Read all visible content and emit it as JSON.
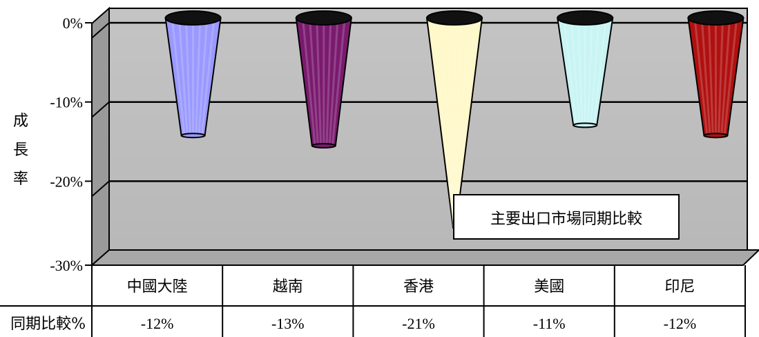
{
  "chart_data": {
    "type": "bar",
    "shape": "cone",
    "categories": [
      "中國大陸",
      "越南",
      "香港",
      "美國",
      "印尼"
    ],
    "series": [
      {
        "values": [
          -12,
          -13,
          -21,
          -11,
          -12
        ]
      }
    ],
    "value_labels": [
      "-12%",
      "-13%",
      "-21%",
      "-11%",
      "-12%"
    ],
    "ylabel_chars": [
      "成",
      "長",
      "率"
    ],
    "yticks": [
      "0%",
      "-10%",
      "-20%",
      "-30%"
    ],
    "ylim": [
      -30,
      0
    ],
    "grid": true,
    "data_table": true,
    "data_table_row_label": "同期比較%",
    "annotation": "主要出口市場同期比較",
    "colors": [
      "#9999ff",
      "#7a1a6e",
      "#fff8c8",
      "#c8f4f4",
      "#b01010"
    ],
    "wall_color": "#c0c0c0"
  }
}
